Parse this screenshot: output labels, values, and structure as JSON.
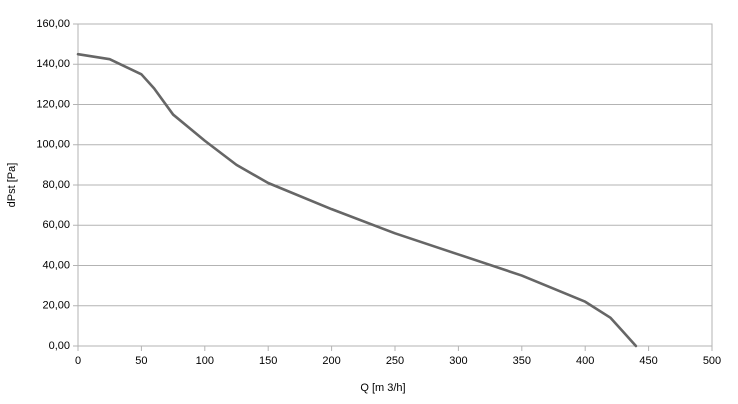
{
  "chart_data": {
    "type": "line",
    "xlabel": "Q [m 3/h]",
    "ylabel": "dPst [Pa]",
    "x": [
      0,
      25,
      50,
      60,
      75,
      100,
      125,
      150,
      200,
      250,
      300,
      350,
      400,
      420,
      430,
      440
    ],
    "series": [
      {
        "name": "dPst",
        "color": "#666666",
        "values": [
          145,
          142.5,
          135,
          128,
          115,
          102,
          90,
          81,
          68,
          56,
          45.5,
          35,
          22,
          14,
          7,
          0
        ]
      }
    ],
    "xlim": [
      0,
      500
    ],
    "xticks": [
      0,
      50,
      100,
      150,
      200,
      250,
      300,
      350,
      400,
      450,
      500
    ],
    "ylim": [
      0,
      160
    ],
    "yticks": [
      {
        "value": 0,
        "label": "0,00"
      },
      {
        "value": 20,
        "label": "20,00"
      },
      {
        "value": 40,
        "label": "40,00"
      },
      {
        "value": 60,
        "label": "60,00"
      },
      {
        "value": 80,
        "label": "80,00"
      },
      {
        "value": 100,
        "label": "100,00"
      },
      {
        "value": 120,
        "label": "120,00"
      },
      {
        "value": 140,
        "label": "140,00"
      },
      {
        "value": 160,
        "label": "160,00"
      }
    ],
    "grid": true
  }
}
